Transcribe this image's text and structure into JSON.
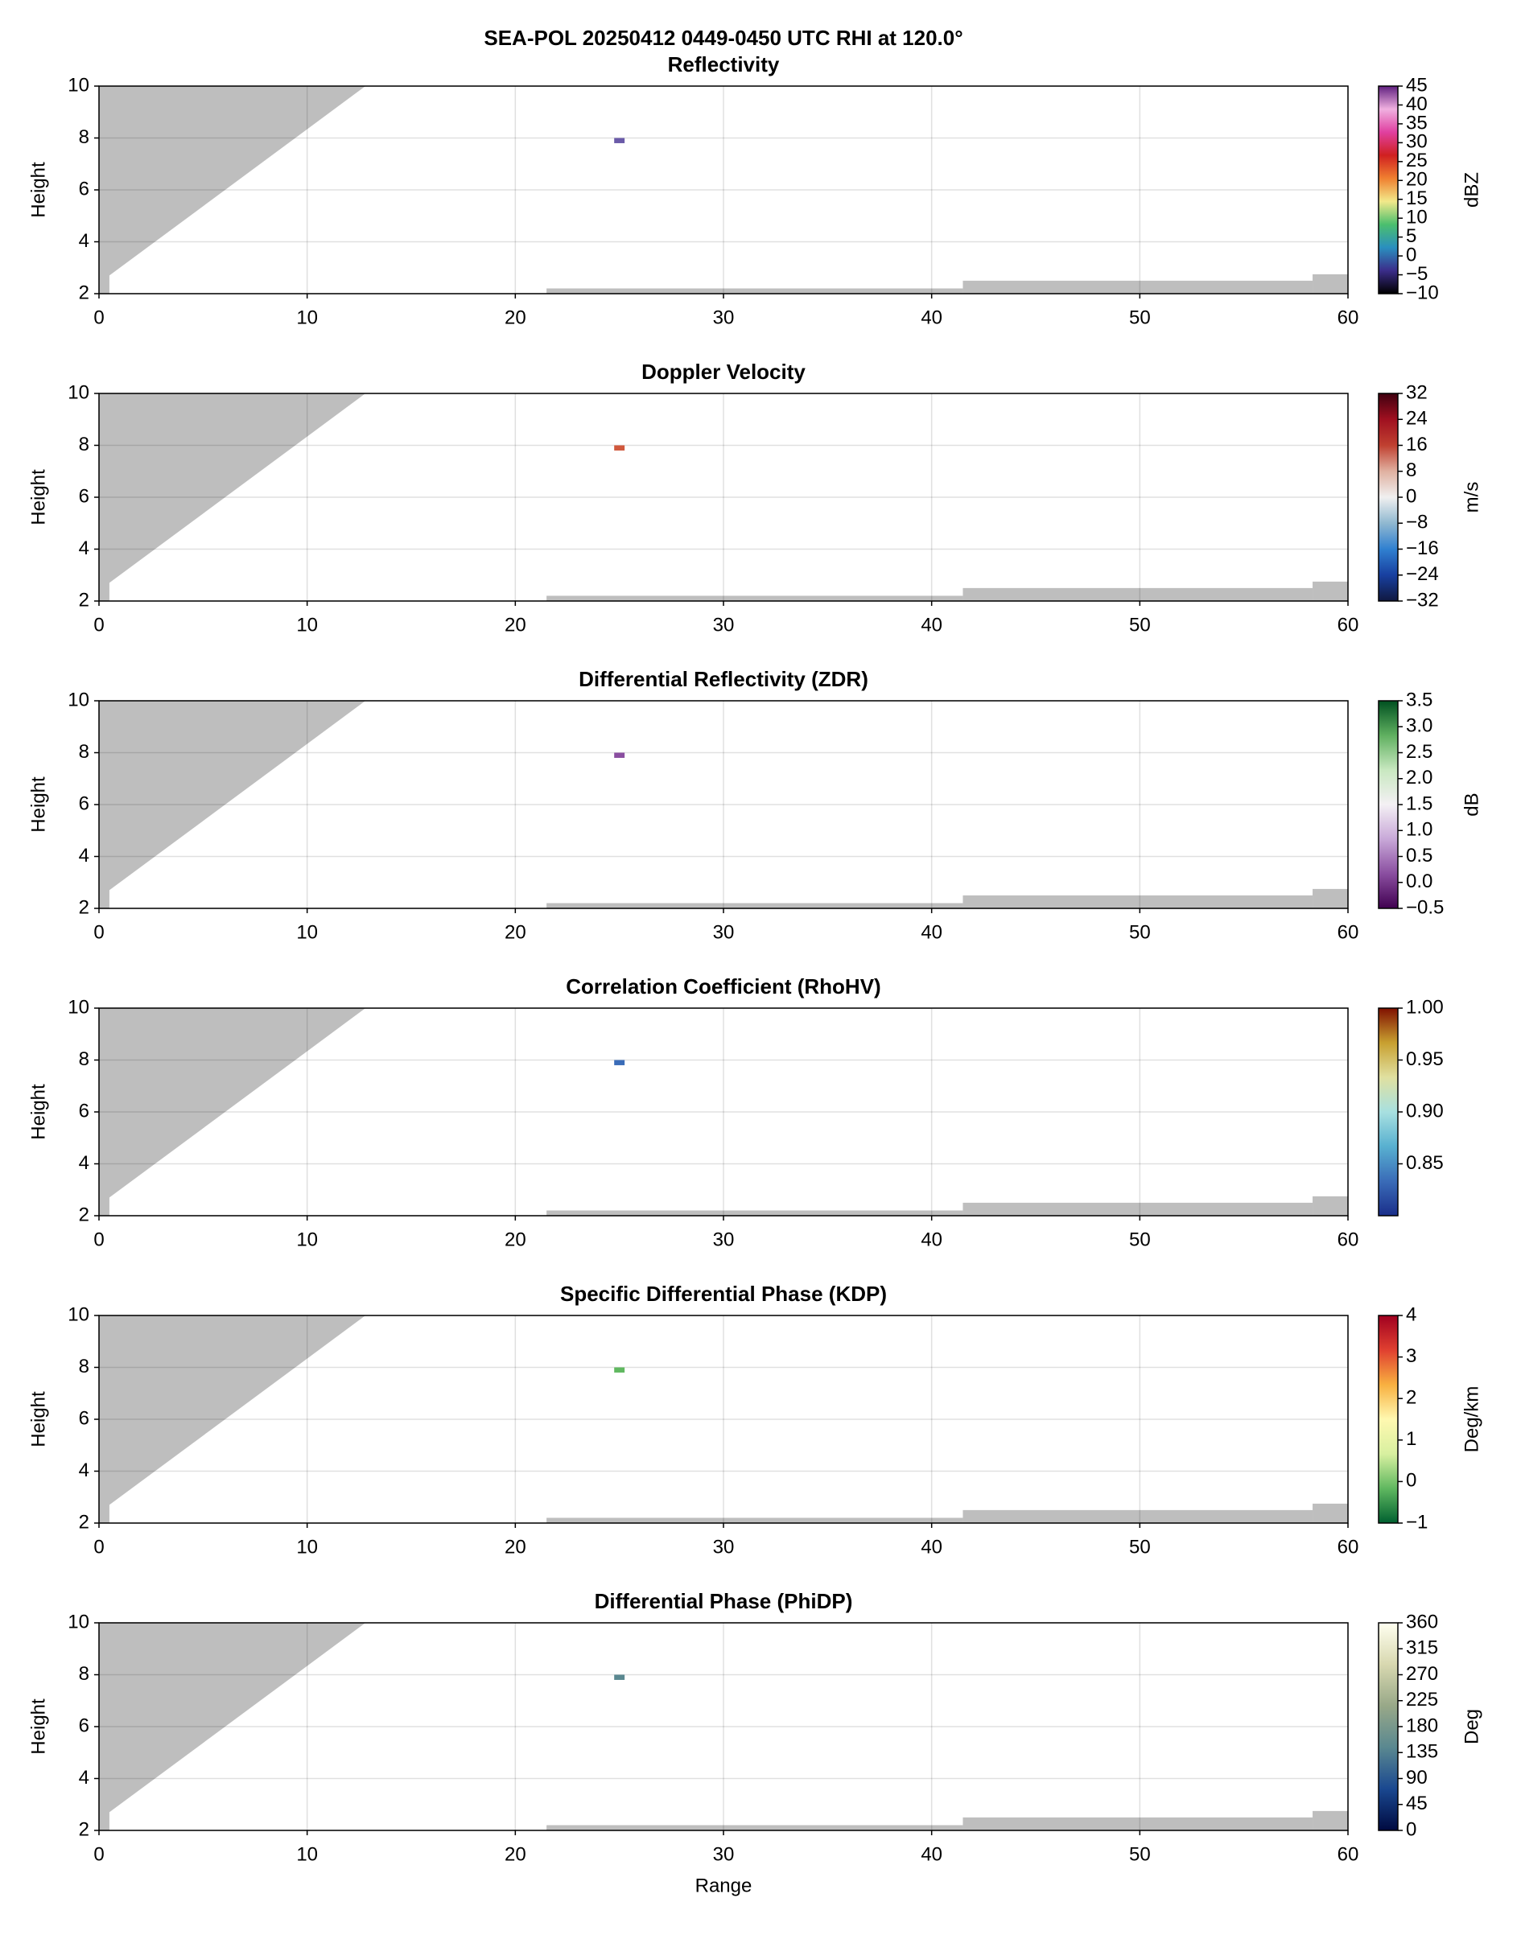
{
  "title": "SEA-POL 20250412 0449-0450 UTC RHI at 120.0°",
  "chart_data": [
    {
      "type": "rhi",
      "title": "Reflectivity",
      "ylabel": "Height",
      "xlim": [
        0,
        60
      ],
      "xticks": [
        0,
        10,
        20,
        30,
        40,
        50,
        60
      ],
      "ylim": [
        2,
        10
      ],
      "yticks": [
        2,
        4,
        6,
        8,
        10
      ],
      "grid": true,
      "mask_color": "#bebebe",
      "masks": [
        [
          [
            0,
            2
          ],
          [
            0.5,
            2
          ],
          [
            0.5,
            2.7
          ],
          [
            12.8,
            10
          ],
          [
            0,
            10
          ]
        ],
        [
          [
            21.5,
            2
          ],
          [
            21.5,
            2.2
          ],
          [
            41.5,
            2.2
          ],
          [
            41.5,
            2
          ]
        ],
        [
          [
            41.5,
            2
          ],
          [
            41.5,
            2.5
          ],
          [
            58.3,
            2.5
          ],
          [
            58.3,
            2
          ]
        ],
        [
          [
            58.3,
            2
          ],
          [
            58.3,
            2.75
          ],
          [
            60,
            2.75
          ],
          [
            60,
            2
          ]
        ]
      ],
      "point": {
        "x": 25,
        "y": 7.9,
        "value": 0,
        "color": "#6a5aa8"
      },
      "colorbar": {
        "label": "dBZ",
        "lim": [
          -10,
          45
        ],
        "ticks": [
          {
            "value": -10,
            "label": "−10"
          },
          {
            "value": -5,
            "label": "−5"
          },
          0,
          5,
          10,
          15,
          20,
          25,
          30,
          35,
          40,
          45
        ],
        "colors": [
          "#000000",
          "#3b2d8a",
          "#2a8fbf",
          "#4bbf6e",
          "#f2e98a",
          "#f08030",
          "#d02020",
          "#e040a0",
          "#f0b0e0",
          "#602080"
        ]
      }
    },
    {
      "type": "rhi",
      "title": "Doppler Velocity",
      "ylabel": "Height",
      "xlim": [
        0,
        60
      ],
      "xticks": [
        0,
        10,
        20,
        30,
        40,
        50,
        60
      ],
      "ylim": [
        2,
        10
      ],
      "yticks": [
        2,
        4,
        6,
        8,
        10
      ],
      "grid": true,
      "mask_color": "#bebebe",
      "masks": [
        [
          [
            0,
            2
          ],
          [
            0.5,
            2
          ],
          [
            0.5,
            2.7
          ],
          [
            12.8,
            10
          ],
          [
            0,
            10
          ]
        ],
        [
          [
            21.5,
            2
          ],
          [
            21.5,
            2.2
          ],
          [
            41.5,
            2.2
          ],
          [
            41.5,
            2
          ]
        ],
        [
          [
            41.5,
            2
          ],
          [
            41.5,
            2.5
          ],
          [
            58.3,
            2.5
          ],
          [
            58.3,
            2
          ]
        ],
        [
          [
            58.3,
            2
          ],
          [
            58.3,
            2.75
          ],
          [
            60,
            2.75
          ],
          [
            60,
            2
          ]
        ]
      ],
      "point": {
        "x": 25,
        "y": 7.9,
        "value": 14,
        "color": "#d0583c"
      },
      "colorbar": {
        "label": "m/s",
        "lim": [
          -32,
          32
        ],
        "ticks": [
          {
            "value": -32,
            "label": "−32"
          },
          {
            "value": -24,
            "label": "−24"
          },
          {
            "value": -16,
            "label": "−16"
          },
          {
            "value": -8,
            "label": "−8"
          },
          0,
          8,
          16,
          24,
          32
        ],
        "colors": [
          "#101840",
          "#1840a0",
          "#3080d0",
          "#90b8d0",
          "#f0f0f0",
          "#e0b0a0",
          "#c04030",
          "#a01020",
          "#400010"
        ]
      }
    },
    {
      "type": "rhi",
      "title": "Differential Reflectivity (ZDR)",
      "ylabel": "Height",
      "xlim": [
        0,
        60
      ],
      "xticks": [
        0,
        10,
        20,
        30,
        40,
        50,
        60
      ],
      "ylim": [
        2,
        10
      ],
      "yticks": [
        2,
        4,
        6,
        8,
        10
      ],
      "grid": true,
      "mask_color": "#bebebe",
      "masks": [
        [
          [
            0,
            2
          ],
          [
            0.5,
            2
          ],
          [
            0.5,
            2.7
          ],
          [
            12.8,
            10
          ],
          [
            0,
            10
          ]
        ],
        [
          [
            21.5,
            2
          ],
          [
            21.5,
            2.2
          ],
          [
            41.5,
            2.2
          ],
          [
            41.5,
            2
          ]
        ],
        [
          [
            41.5,
            2
          ],
          [
            41.5,
            2.5
          ],
          [
            58.3,
            2.5
          ],
          [
            58.3,
            2
          ]
        ],
        [
          [
            58.3,
            2
          ],
          [
            58.3,
            2.75
          ],
          [
            60,
            2.75
          ],
          [
            60,
            2
          ]
        ]
      ],
      "point": {
        "x": 25,
        "y": 7.9,
        "value": 0.2,
        "color": "#8a4ea0"
      },
      "colorbar": {
        "label": "dB",
        "lim": [
          -0.5,
          3.5
        ],
        "ticks": [
          {
            "value": -0.5,
            "label": "−0.5"
          },
          {
            "value": 0,
            "label": "0.0"
          },
          0.5,
          {
            "value": 1,
            "label": "1.0"
          },
          1.5,
          {
            "value": 2,
            "label": "2.0"
          },
          2.5,
          {
            "value": 3,
            "label": "3.0"
          },
          3.5
        ],
        "colors": [
          "#400050",
          "#8a4ea0",
          "#c8a8d8",
          "#f4f0f4",
          "#c8e8c0",
          "#60b060",
          "#005020"
        ]
      }
    },
    {
      "type": "rhi",
      "title": "Correlation Coefficient (RhoHV)",
      "ylabel": "Height",
      "xlim": [
        0,
        60
      ],
      "xticks": [
        0,
        10,
        20,
        30,
        40,
        50,
        60
      ],
      "ylim": [
        2,
        10
      ],
      "yticks": [
        2,
        4,
        6,
        8,
        10
      ],
      "grid": true,
      "mask_color": "#bebebe",
      "masks": [
        [
          [
            0,
            2
          ],
          [
            0.5,
            2
          ],
          [
            0.5,
            2.7
          ],
          [
            12.8,
            10
          ],
          [
            0,
            10
          ]
        ],
        [
          [
            21.5,
            2
          ],
          [
            21.5,
            2.2
          ],
          [
            41.5,
            2.2
          ],
          [
            41.5,
            2
          ]
        ],
        [
          [
            41.5,
            2
          ],
          [
            41.5,
            2.5
          ],
          [
            58.3,
            2.5
          ],
          [
            58.3,
            2
          ]
        ],
        [
          [
            58.3,
            2
          ],
          [
            58.3,
            2.75
          ],
          [
            60,
            2.75
          ],
          [
            60,
            2
          ]
        ]
      ],
      "point": {
        "x": 25,
        "y": 7.9,
        "value": 0.86,
        "color": "#3a6cb8"
      },
      "colorbar": {
        "label": "",
        "lim": [
          0.8,
          1.0
        ],
        "ticks": [
          0.85,
          {
            "value": 0.9,
            "label": "0.90"
          },
          0.95,
          {
            "value": 1,
            "label": "1.00"
          }
        ],
        "colors": [
          "#1a2e8a",
          "#3a6cb8",
          "#58b0d0",
          "#a8e0e0",
          "#e0e0a0",
          "#c8a030",
          "#801000"
        ]
      }
    },
    {
      "type": "rhi",
      "title": "Specific Differential Phase (KDP)",
      "ylabel": "Height",
      "xlim": [
        0,
        60
      ],
      "xticks": [
        0,
        10,
        20,
        30,
        40,
        50,
        60
      ],
      "ylim": [
        2,
        10
      ],
      "yticks": [
        2,
        4,
        6,
        8,
        10
      ],
      "grid": true,
      "mask_color": "#bebebe",
      "masks": [
        [
          [
            0,
            2
          ],
          [
            0.5,
            2
          ],
          [
            0.5,
            2.7
          ],
          [
            12.8,
            10
          ],
          [
            0,
            10
          ]
        ],
        [
          [
            21.5,
            2
          ],
          [
            21.5,
            2.2
          ],
          [
            41.5,
            2.2
          ],
          [
            41.5,
            2
          ]
        ],
        [
          [
            41.5,
            2
          ],
          [
            41.5,
            2.5
          ],
          [
            58.3,
            2.5
          ],
          [
            58.3,
            2
          ]
        ],
        [
          [
            58.3,
            2
          ],
          [
            58.3,
            2.75
          ],
          [
            60,
            2.75
          ],
          [
            60,
            2
          ]
        ]
      ],
      "point": {
        "x": 25,
        "y": 7.9,
        "value": 0.3,
        "color": "#60b860"
      },
      "colorbar": {
        "label": "Deg/km",
        "lim": [
          -1,
          4
        ],
        "ticks": [
          {
            "value": -1,
            "label": "−1"
          },
          0,
          1,
          2,
          3,
          4
        ],
        "colors": [
          "#006030",
          "#60b860",
          "#d8f0a0",
          "#fff8b0",
          "#f8b040",
          "#e04030",
          "#a00020"
        ]
      }
    },
    {
      "type": "rhi",
      "title": "Differential Phase (PhiDP)",
      "ylabel": "Height",
      "xlabel": "Range",
      "xlim": [
        0,
        60
      ],
      "xticks": [
        0,
        10,
        20,
        30,
        40,
        50,
        60
      ],
      "ylim": [
        2,
        10
      ],
      "yticks": [
        2,
        4,
        6,
        8,
        10
      ],
      "grid": true,
      "mask_color": "#bebebe",
      "masks": [
        [
          [
            0,
            2
          ],
          [
            0.5,
            2
          ],
          [
            0.5,
            2.7
          ],
          [
            12.8,
            10
          ],
          [
            0,
            10
          ]
        ],
        [
          [
            21.5,
            2
          ],
          [
            21.5,
            2.2
          ],
          [
            41.5,
            2.2
          ],
          [
            41.5,
            2
          ]
        ],
        [
          [
            41.5,
            2
          ],
          [
            41.5,
            2.5
          ],
          [
            58.3,
            2.5
          ],
          [
            58.3,
            2
          ]
        ],
        [
          [
            58.3,
            2
          ],
          [
            58.3,
            2.75
          ],
          [
            60,
            2.75
          ],
          [
            60,
            2
          ]
        ]
      ],
      "point": {
        "x": 25,
        "y": 7.9,
        "value": 170,
        "color": "#5a8890"
      },
      "colorbar": {
        "label": "Deg",
        "lim": [
          0,
          360
        ],
        "ticks": [
          0,
          45,
          90,
          135,
          180,
          225,
          270,
          315,
          360
        ],
        "colors": [
          "#000a40",
          "#1a4890",
          "#5a8890",
          "#98a888",
          "#d8d8b0",
          "#fffff0"
        ]
      }
    }
  ]
}
